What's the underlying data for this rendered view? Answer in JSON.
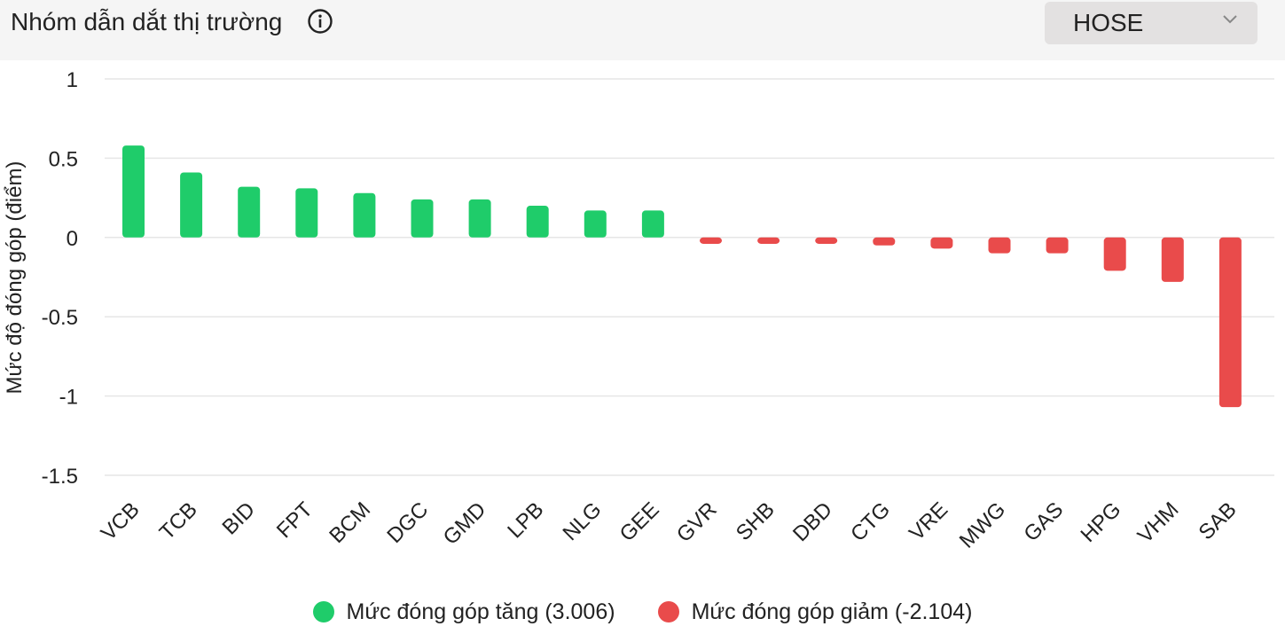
{
  "header": {
    "title": "Nhóm dẫn dắt thị trường",
    "info_icon": "info-icon",
    "exchange_select": {
      "value": "HOSE",
      "icon": "chevron-down-icon"
    }
  },
  "colors": {
    "positive": "#1fcc6a",
    "negative": "#e94b4b",
    "grid": "#e6e6e6",
    "header_bg": "#f5f5f5"
  },
  "chart_data": {
    "type": "bar",
    "ylabel": "Mức độ đóng góp (điểm)",
    "xlabel": "",
    "ylim": [
      -1.5,
      1
    ],
    "yticks": [
      1,
      0.5,
      0,
      -0.5,
      -1,
      -1.5
    ],
    "ytick_labels": [
      "1",
      "0.5",
      "0",
      "-0.5",
      "-1",
      "-1.5"
    ],
    "grid": true,
    "legend_placement": "bottom-center",
    "categories": [
      "VCB",
      "TCB",
      "BID",
      "FPT",
      "BCM",
      "DGC",
      "GMD",
      "LPB",
      "NLG",
      "GEE",
      "GVR",
      "SHB",
      "DBD",
      "CTG",
      "VRE",
      "MWG",
      "GAS",
      "HPG",
      "VHM",
      "SAB"
    ],
    "values": [
      0.58,
      0.41,
      0.32,
      0.31,
      0.28,
      0.24,
      0.24,
      0.2,
      0.17,
      0.17,
      -0.04,
      -0.04,
      -0.04,
      -0.05,
      -0.07,
      -0.1,
      -0.1,
      -0.21,
      -0.28,
      -1.07
    ],
    "legend": [
      {
        "label": "Mức đóng góp tăng (3.006)",
        "color": "#1fcc6a"
      },
      {
        "label": "Mức đóng góp giảm (-2.104)",
        "color": "#e94b4b"
      }
    ]
  }
}
